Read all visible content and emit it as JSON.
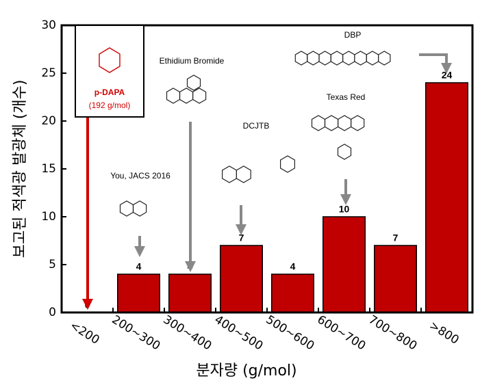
{
  "chart_data": {
    "type": "bar",
    "categories": [
      "<200",
      "200~300",
      "300~400",
      "400~500",
      "500~600",
      "600~700",
      "700~800",
      ">800"
    ],
    "values": [
      0,
      4,
      4,
      7,
      4,
      10,
      7,
      24
    ],
    "color": "#c00000",
    "ylim": [
      0,
      30
    ],
    "yticks": [
      0,
      5,
      10,
      15,
      20,
      25,
      30
    ],
    "y_label": "보고된 적색광 발광체 (개수)",
    "x_label": "분자량 (g/mol)",
    "annotations": [
      {
        "text": "p-DAPA",
        "sub": "(192 g/mol)",
        "color": "#d00000"
      },
      {
        "text": "You, JACS 2016"
      },
      {
        "text": "Ethidium Bromide"
      },
      {
        "text": "DCJTB"
      },
      {
        "text": "Texas Red"
      },
      {
        "text": "DBP"
      }
    ]
  }
}
